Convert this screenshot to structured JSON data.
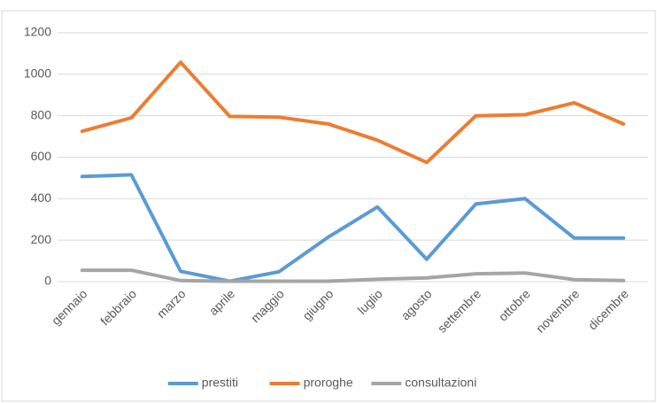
{
  "chart_data": {
    "type": "line",
    "categories": [
      "gennaio",
      "febbraio",
      "marzo",
      "aprile",
      "maggio",
      "giugno",
      "luglio",
      "agosto",
      "settembre",
      "ottobre",
      "novembre",
      "dicembre"
    ],
    "series": [
      {
        "name": "prestiti",
        "color": "#5b9bd5",
        "values": [
          507,
          515,
          50,
          2,
          48,
          215,
          360,
          108,
          375,
          400,
          210,
          210
        ]
      },
      {
        "name": "proroghe",
        "color": "#ed7d31",
        "values": [
          725,
          790,
          1058,
          797,
          793,
          760,
          682,
          575,
          800,
          805,
          862,
          760
        ]
      },
      {
        "name": "consultazioni",
        "color": "#a5a5a5",
        "values": [
          55,
          55,
          5,
          2,
          2,
          2,
          12,
          18,
          38,
          42,
          10,
          5
        ]
      }
    ],
    "ylim": [
      0,
      1200
    ],
    "yticks": [
      0,
      200,
      400,
      600,
      800,
      1000,
      1200
    ],
    "grid": true,
    "legend": "bottom"
  }
}
